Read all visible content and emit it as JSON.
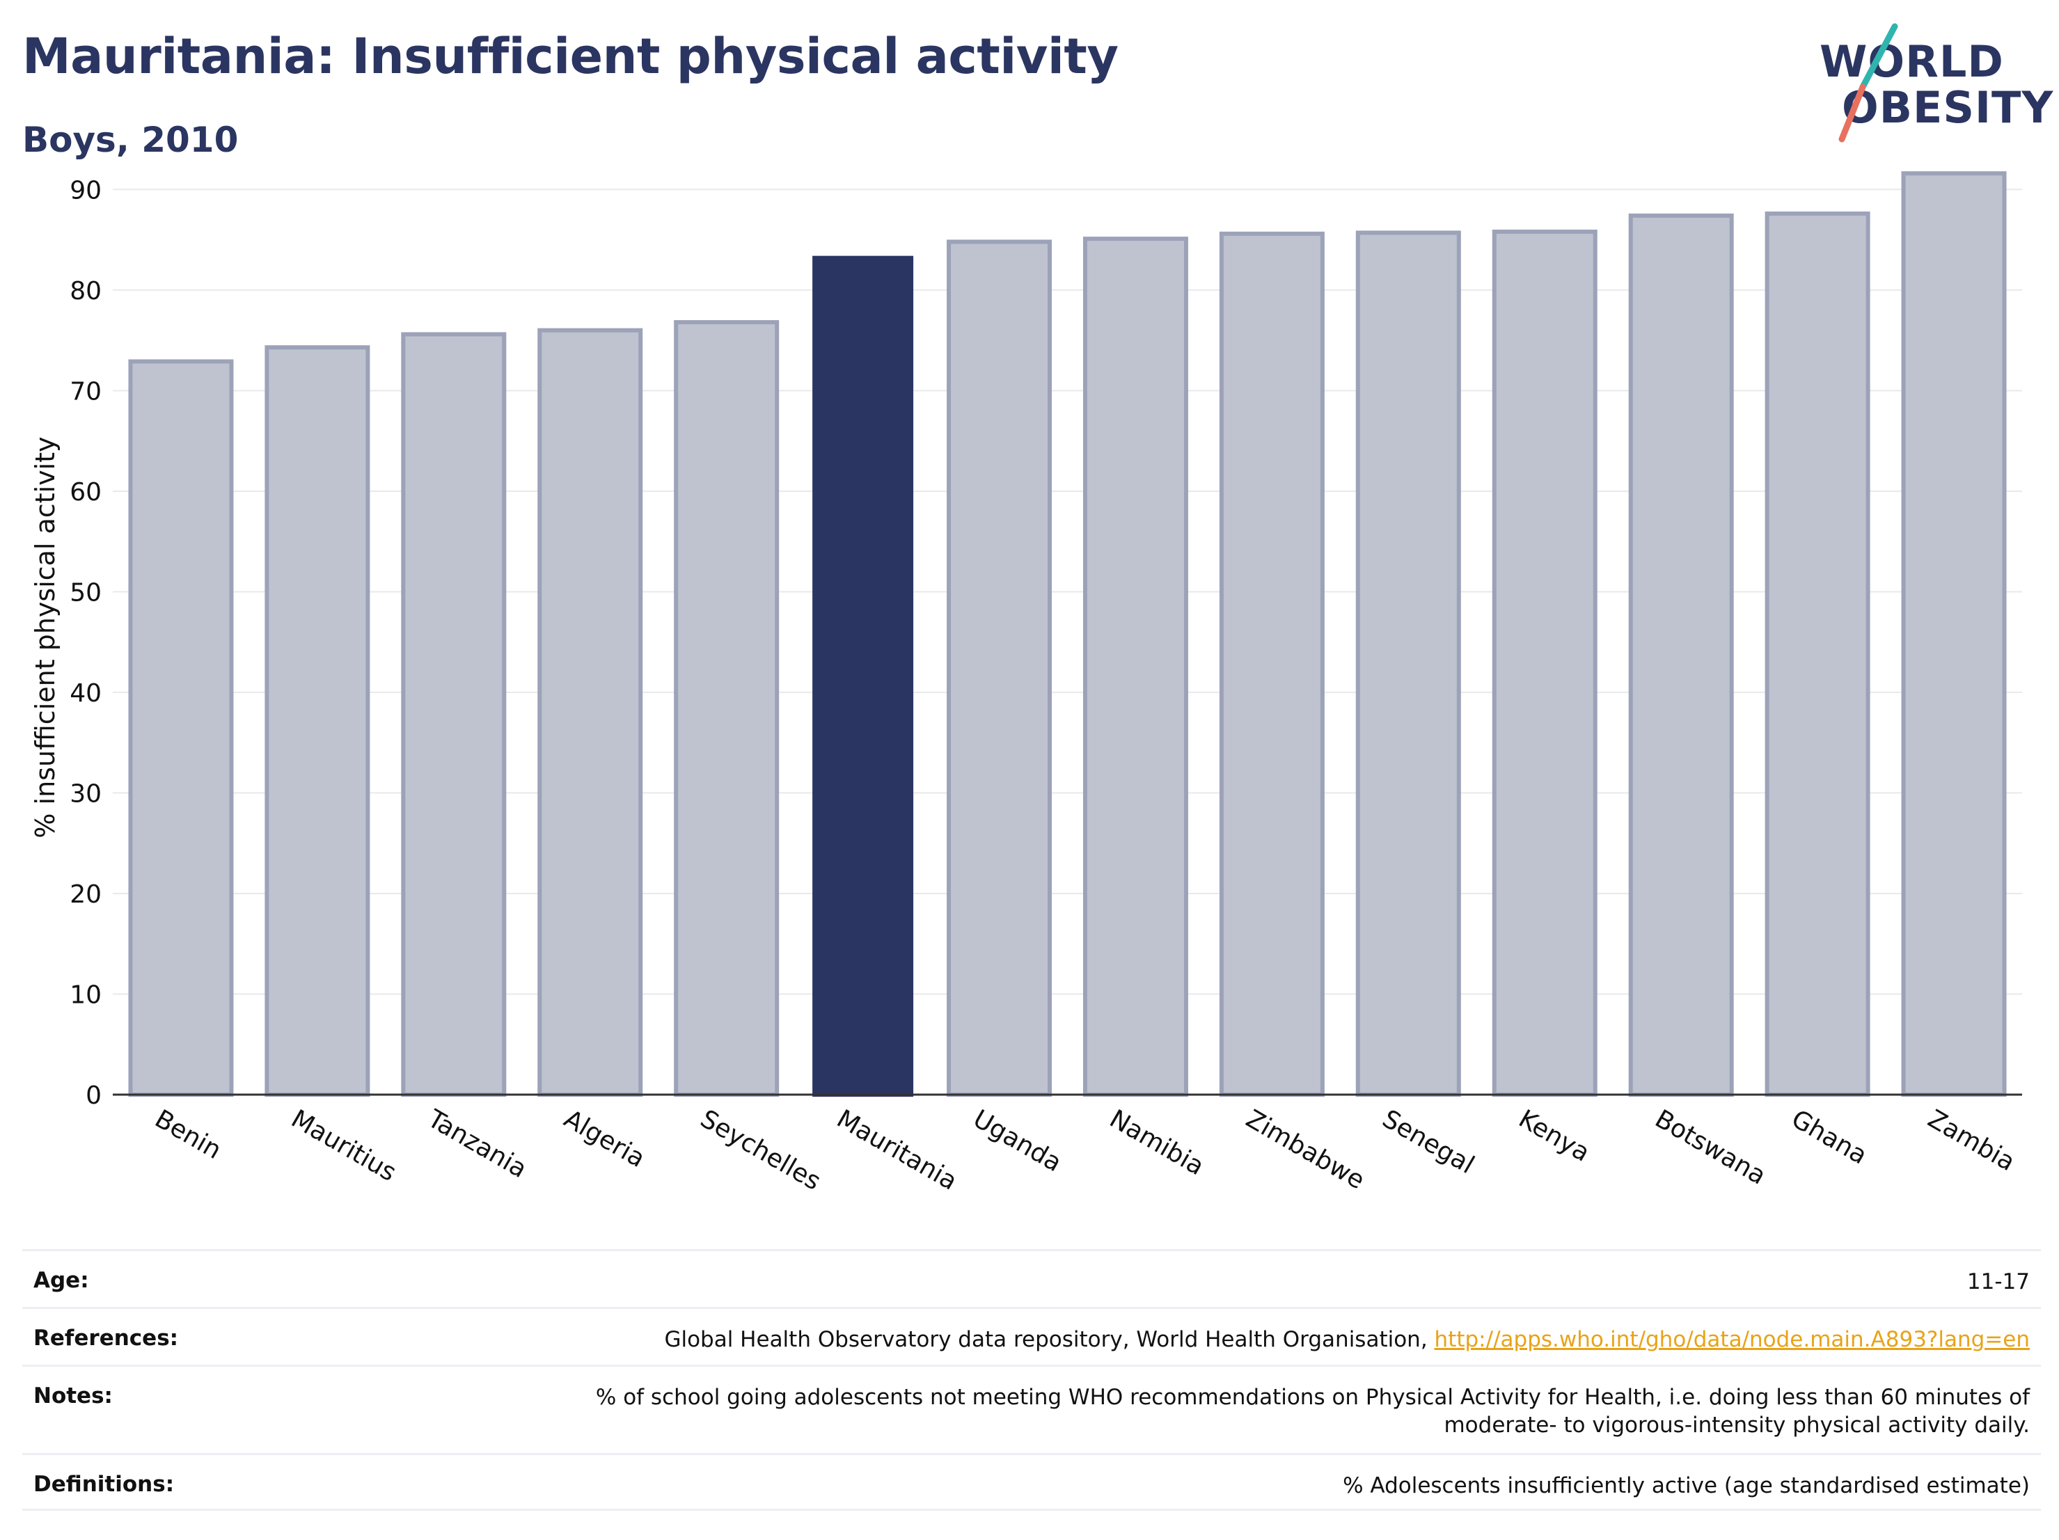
{
  "header": {
    "title": "Mauritania: Insufficient physical activity",
    "subtitle": "Boys, 2010"
  },
  "logo": {
    "line1": "WORLD",
    "line2": "OBESITY"
  },
  "colors": {
    "highlight": "#2b3561",
    "bar": "#bfc3d0",
    "bar_border": "#9ca2b8",
    "link": "#e8a317"
  },
  "chart_data": {
    "type": "bar",
    "categories": [
      "Benin",
      "Mauritius",
      "Tanzania",
      "Algeria",
      "Seychelles",
      "Mauritania",
      "Uganda",
      "Namibia",
      "Zimbabwe",
      "Senegal",
      "Kenya",
      "Botswana",
      "Ghana",
      "Zambia"
    ],
    "values": [
      72.9,
      74.3,
      75.6,
      76.0,
      76.8,
      83.4,
      84.8,
      85.1,
      85.6,
      85.7,
      85.8,
      87.4,
      87.6,
      91.6
    ],
    "highlight": "Mauritania",
    "ylabel": "% insufficient physical activity",
    "xlabel": "",
    "ylim": [
      0,
      95
    ],
    "yticks": [
      0,
      10,
      20,
      30,
      40,
      50,
      60,
      70,
      80,
      90
    ],
    "grid": true
  },
  "info": {
    "age_label": "Age:",
    "age_value": "11-17",
    "references_label": "References:",
    "references_text": "Global Health Observatory data repository, World Health Organisation, ",
    "references_link": "http://apps.who.int/gho/data/node.main.A893?lang=en",
    "notes_label": "Notes:",
    "notes_line1": "% of school going adolescents not meeting WHO recommendations on Physical Activity for Health, i.e. doing less than 60 minutes of",
    "notes_line2": "moderate- to vigorous-intensity physical activity daily.",
    "definitions_label": "Definitions:",
    "definitions_value": "% Adolescents insufficiently active (age standardised estimate)"
  }
}
